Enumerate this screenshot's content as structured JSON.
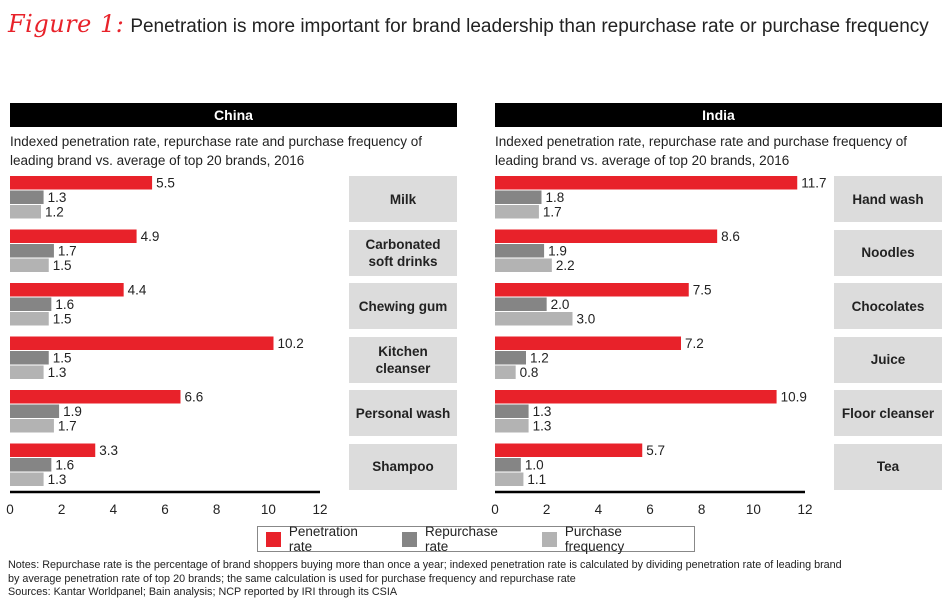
{
  "figure": {
    "label": "Figure 1:",
    "title": "Penetration is more important for brand leadership than repurchase rate or purchase frequency"
  },
  "colors": {
    "penetration": "#e8222a",
    "repurchase": "#858585",
    "frequency": "#b3b3b3",
    "category_box": "#dcdcdc",
    "header": "#000000"
  },
  "legend": [
    {
      "name": "Penetration rate",
      "color": "#e8222a"
    },
    {
      "name": "Repurchase rate",
      "color": "#858585"
    },
    {
      "name": "Purchase frequency",
      "color": "#b3b3b3"
    }
  ],
  "notes": {
    "line1": "Notes: Repurchase rate is the percentage of brand shoppers buying more than once a year; indexed penetration rate is calculated by dividing penetration rate of leading brand",
    "line2": "by average penetration rate of top 20 brands; the same calculation is used for purchase frequency and repurchase rate",
    "line3": "Sources: Kantar Worldpanel; Bain analysis; NCP reported by IRI through its CSIA"
  },
  "chart_data": [
    {
      "type": "bar",
      "orientation": "horizontal",
      "title": "China",
      "subtitle": "Indexed penetration rate, repurchase rate and purchase frequency of leading brand vs. average of top 20 brands, 2016",
      "categories": [
        "Milk",
        "Carbonated soft drinks",
        "Chewing gum",
        "Kitchen cleanser",
        "Personal wash",
        "Shampoo"
      ],
      "series": [
        {
          "name": "Penetration rate",
          "values": [
            5.5,
            4.9,
            4.4,
            10.2,
            6.6,
            3.3
          ]
        },
        {
          "name": "Repurchase rate",
          "values": [
            1.3,
            1.7,
            1.6,
            1.5,
            1.9,
            1.6
          ]
        },
        {
          "name": "Purchase frequency",
          "values": [
            1.2,
            1.5,
            1.5,
            1.3,
            1.7,
            1.3
          ]
        }
      ],
      "xlim": [
        0,
        12
      ],
      "xticks": [
        0,
        2,
        4,
        6,
        8,
        10,
        12
      ]
    },
    {
      "type": "bar",
      "orientation": "horizontal",
      "title": "India",
      "subtitle": "Indexed penetration rate, repurchase rate and purchase frequency of leading brand vs. average of top 20 brands, 2016",
      "categories": [
        "Hand wash",
        "Noodles",
        "Chocolates",
        "Juice",
        "Floor cleanser",
        "Tea"
      ],
      "series": [
        {
          "name": "Penetration rate",
          "values": [
            11.7,
            8.6,
            7.5,
            7.2,
            10.9,
            5.7
          ]
        },
        {
          "name": "Repurchase rate",
          "values": [
            1.8,
            1.9,
            2.0,
            1.2,
            1.3,
            1.0
          ]
        },
        {
          "name": "Purchase frequency",
          "values": [
            1.7,
            2.2,
            3.0,
            0.8,
            1.3,
            1.1
          ]
        }
      ],
      "xlim": [
        0,
        12
      ],
      "xticks": [
        0,
        2,
        4,
        6,
        8,
        10,
        12
      ]
    }
  ]
}
